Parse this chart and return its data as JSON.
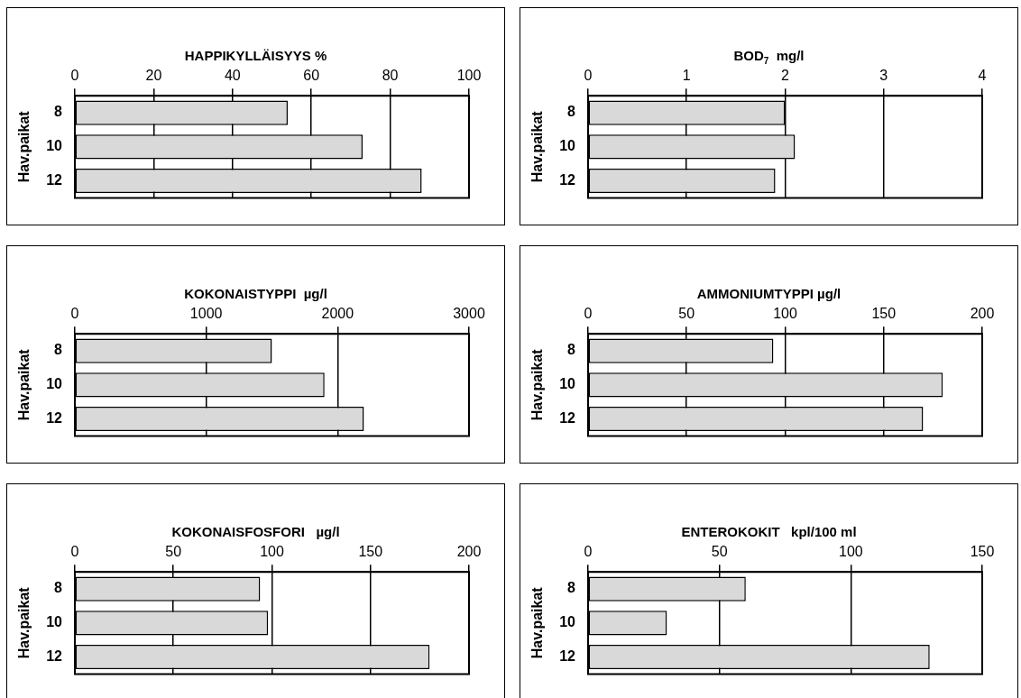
{
  "chart_data": [
    {
      "type": "bar",
      "orientation": "horizontal",
      "title": "HAPPIKYLLÄISYYS %",
      "ylabel": "Hav.paikat",
      "categories": [
        "8",
        "10",
        "12"
      ],
      "values": [
        54,
        73,
        88
      ],
      "color": "#d9d9d9",
      "xlim": [
        0,
        100
      ],
      "xticks": [
        0,
        20,
        40,
        60,
        80,
        100
      ],
      "grid": "x"
    },
    {
      "type": "bar",
      "orientation": "horizontal",
      "title": "BOD$_{7}$  mg/l",
      "ylabel": "Hav.paikat",
      "categories": [
        "8",
        "10",
        "12"
      ],
      "values": [
        2.0,
        2.1,
        1.9
      ],
      "color": "#d9d9d9",
      "xlim": [
        0,
        4
      ],
      "xticks": [
        0,
        1,
        2,
        3,
        4
      ],
      "grid": "x"
    },
    {
      "type": "bar",
      "orientation": "horizontal",
      "title": "KOKONAISTYPPI  µg/l",
      "ylabel": "Hav.paikat",
      "categories": [
        "8",
        "10",
        "12"
      ],
      "values": [
        1500,
        1900,
        2200
      ],
      "color": "#d9d9d9",
      "xlim": [
        0,
        3000
      ],
      "xticks": [
        0,
        1000,
        2000,
        3000
      ],
      "grid": "x"
    },
    {
      "type": "bar",
      "orientation": "horizontal",
      "title": "AMMONIUMTYPPI µg/l",
      "ylabel": "Hav.paikat",
      "categories": [
        "8",
        "10",
        "12"
      ],
      "values": [
        94,
        180,
        170
      ],
      "color": "#d9d9d9",
      "xlim": [
        0,
        200
      ],
      "xticks": [
        0,
        50,
        100,
        150,
        200
      ],
      "grid": "x"
    },
    {
      "type": "bar",
      "orientation": "horizontal",
      "title": "KOKONAISFOSFORI   µg/l",
      "ylabel": "Hav.paikat",
      "categories": [
        "8",
        "10",
        "12"
      ],
      "values": [
        94,
        98,
        180
      ],
      "color": "#d9d9d9",
      "xlim": [
        0,
        200
      ],
      "xticks": [
        0,
        50,
        100,
        150,
        200
      ],
      "grid": "x"
    },
    {
      "type": "bar",
      "orientation": "horizontal",
      "title": "ENTEROKOKIT   kpl/100 ml",
      "ylabel": "Hav.paikat",
      "categories": [
        "8",
        "10",
        "12"
      ],
      "values": [
        60,
        30,
        130
      ],
      "color": "#d9d9d9",
      "xlim": [
        0,
        150
      ],
      "xticks": [
        0,
        50,
        100,
        150
      ],
      "grid": "x"
    }
  ]
}
